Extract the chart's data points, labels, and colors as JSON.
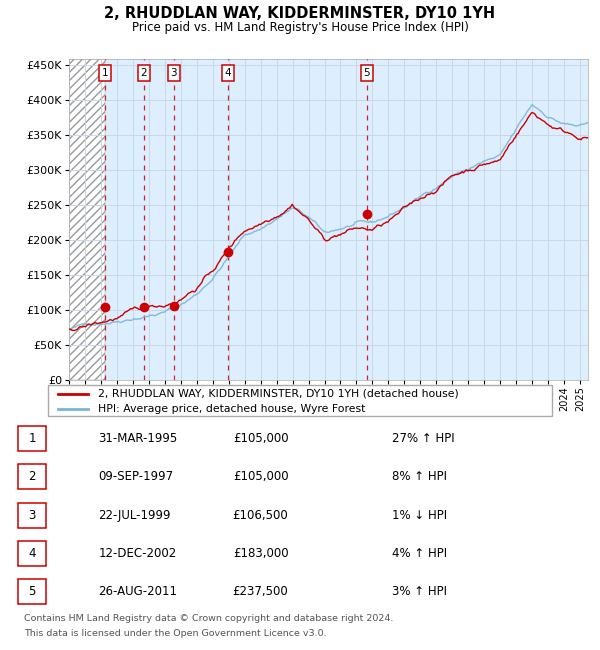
{
  "title": "2, RHUDDLAN WAY, KIDDERMINSTER, DY10 1YH",
  "subtitle": "Price paid vs. HM Land Registry's House Price Index (HPI)",
  "legend_line1": "2, RHUDDLAN WAY, KIDDERMINSTER, DY10 1YH (detached house)",
  "legend_line2": "HPI: Average price, detached house, Wyre Forest",
  "footer1": "Contains HM Land Registry data © Crown copyright and database right 2024.",
  "footer2": "This data is licensed under the Open Government Licence v3.0.",
  "transactions": [
    {
      "num": 1,
      "date": "31-MAR-1995",
      "price": 105000,
      "hpi_pct": "27%",
      "direction": "↑"
    },
    {
      "num": 2,
      "date": "09-SEP-1997",
      "price": 105000,
      "hpi_pct": "8%",
      "direction": "↑"
    },
    {
      "num": 3,
      "date": "22-JUL-1999",
      "price": 106500,
      "hpi_pct": "1%",
      "direction": "↓"
    },
    {
      "num": 4,
      "date": "12-DEC-2002",
      "price": 183000,
      "hpi_pct": "4%",
      "direction": "↑"
    },
    {
      "num": 5,
      "date": "26-AUG-2011",
      "price": 237500,
      "hpi_pct": "3%",
      "direction": "↑"
    }
  ],
  "transaction_dates_decimal": [
    1995.25,
    1997.69,
    1999.55,
    2002.95,
    2011.65
  ],
  "transaction_prices": [
    105000,
    105000,
    106500,
    183000,
    237500
  ],
  "hpi_color": "#7ab4d8",
  "price_color": "#cc0000",
  "dashed_line_color": "#cc0000",
  "box_color": "#cc0000",
  "grid_color": "#c8d8e8",
  "bg_color": "#ddeeff",
  "ylim": [
    0,
    460000
  ],
  "yticks": [
    0,
    50000,
    100000,
    150000,
    200000,
    250000,
    300000,
    350000,
    400000,
    450000
  ],
  "xlim_start": 1993.0,
  "xlim_end": 2025.5,
  "hpi_anchors_x": [
    1993,
    1994,
    1995,
    1996,
    1997,
    1998,
    1999,
    2000,
    2001,
    2002,
    2003,
    2004,
    2005,
    2006,
    2007,
    2008,
    2009,
    2010,
    2011,
    2012,
    2013,
    2014,
    2015,
    2016,
    2017,
    2018,
    2019,
    2020,
    2021,
    2022,
    2023,
    2024,
    2025
  ],
  "hpi_anchors_y": [
    72000,
    78000,
    83000,
    88000,
    95000,
    100000,
    105000,
    115000,
    130000,
    155000,
    185000,
    215000,
    225000,
    240000,
    255000,
    240000,
    215000,
    222000,
    228000,
    225000,
    235000,
    248000,
    262000,
    278000,
    295000,
    305000,
    315000,
    320000,
    355000,
    390000,
    375000,
    365000,
    360000
  ],
  "price_anchors_x": [
    1993,
    1994,
    1995,
    1996,
    1997,
    1998,
    1999,
    2000,
    2001,
    2002,
    2003,
    2004,
    2005,
    2006,
    2007,
    2008,
    2009,
    2010,
    2011,
    2012,
    2013,
    2014,
    2015,
    2016,
    2017,
    2018,
    2019,
    2020,
    2021,
    2022,
    2023,
    2024,
    2025
  ],
  "price_anchors_y": [
    74000,
    80000,
    85000,
    92000,
    98000,
    104000,
    108000,
    120000,
    138000,
    162000,
    193000,
    220000,
    232000,
    248000,
    268000,
    248000,
    218000,
    228000,
    235000,
    232000,
    242000,
    256000,
    270000,
    286000,
    305000,
    315000,
    325000,
    330000,
    368000,
    400000,
    385000,
    375000,
    370000
  ]
}
